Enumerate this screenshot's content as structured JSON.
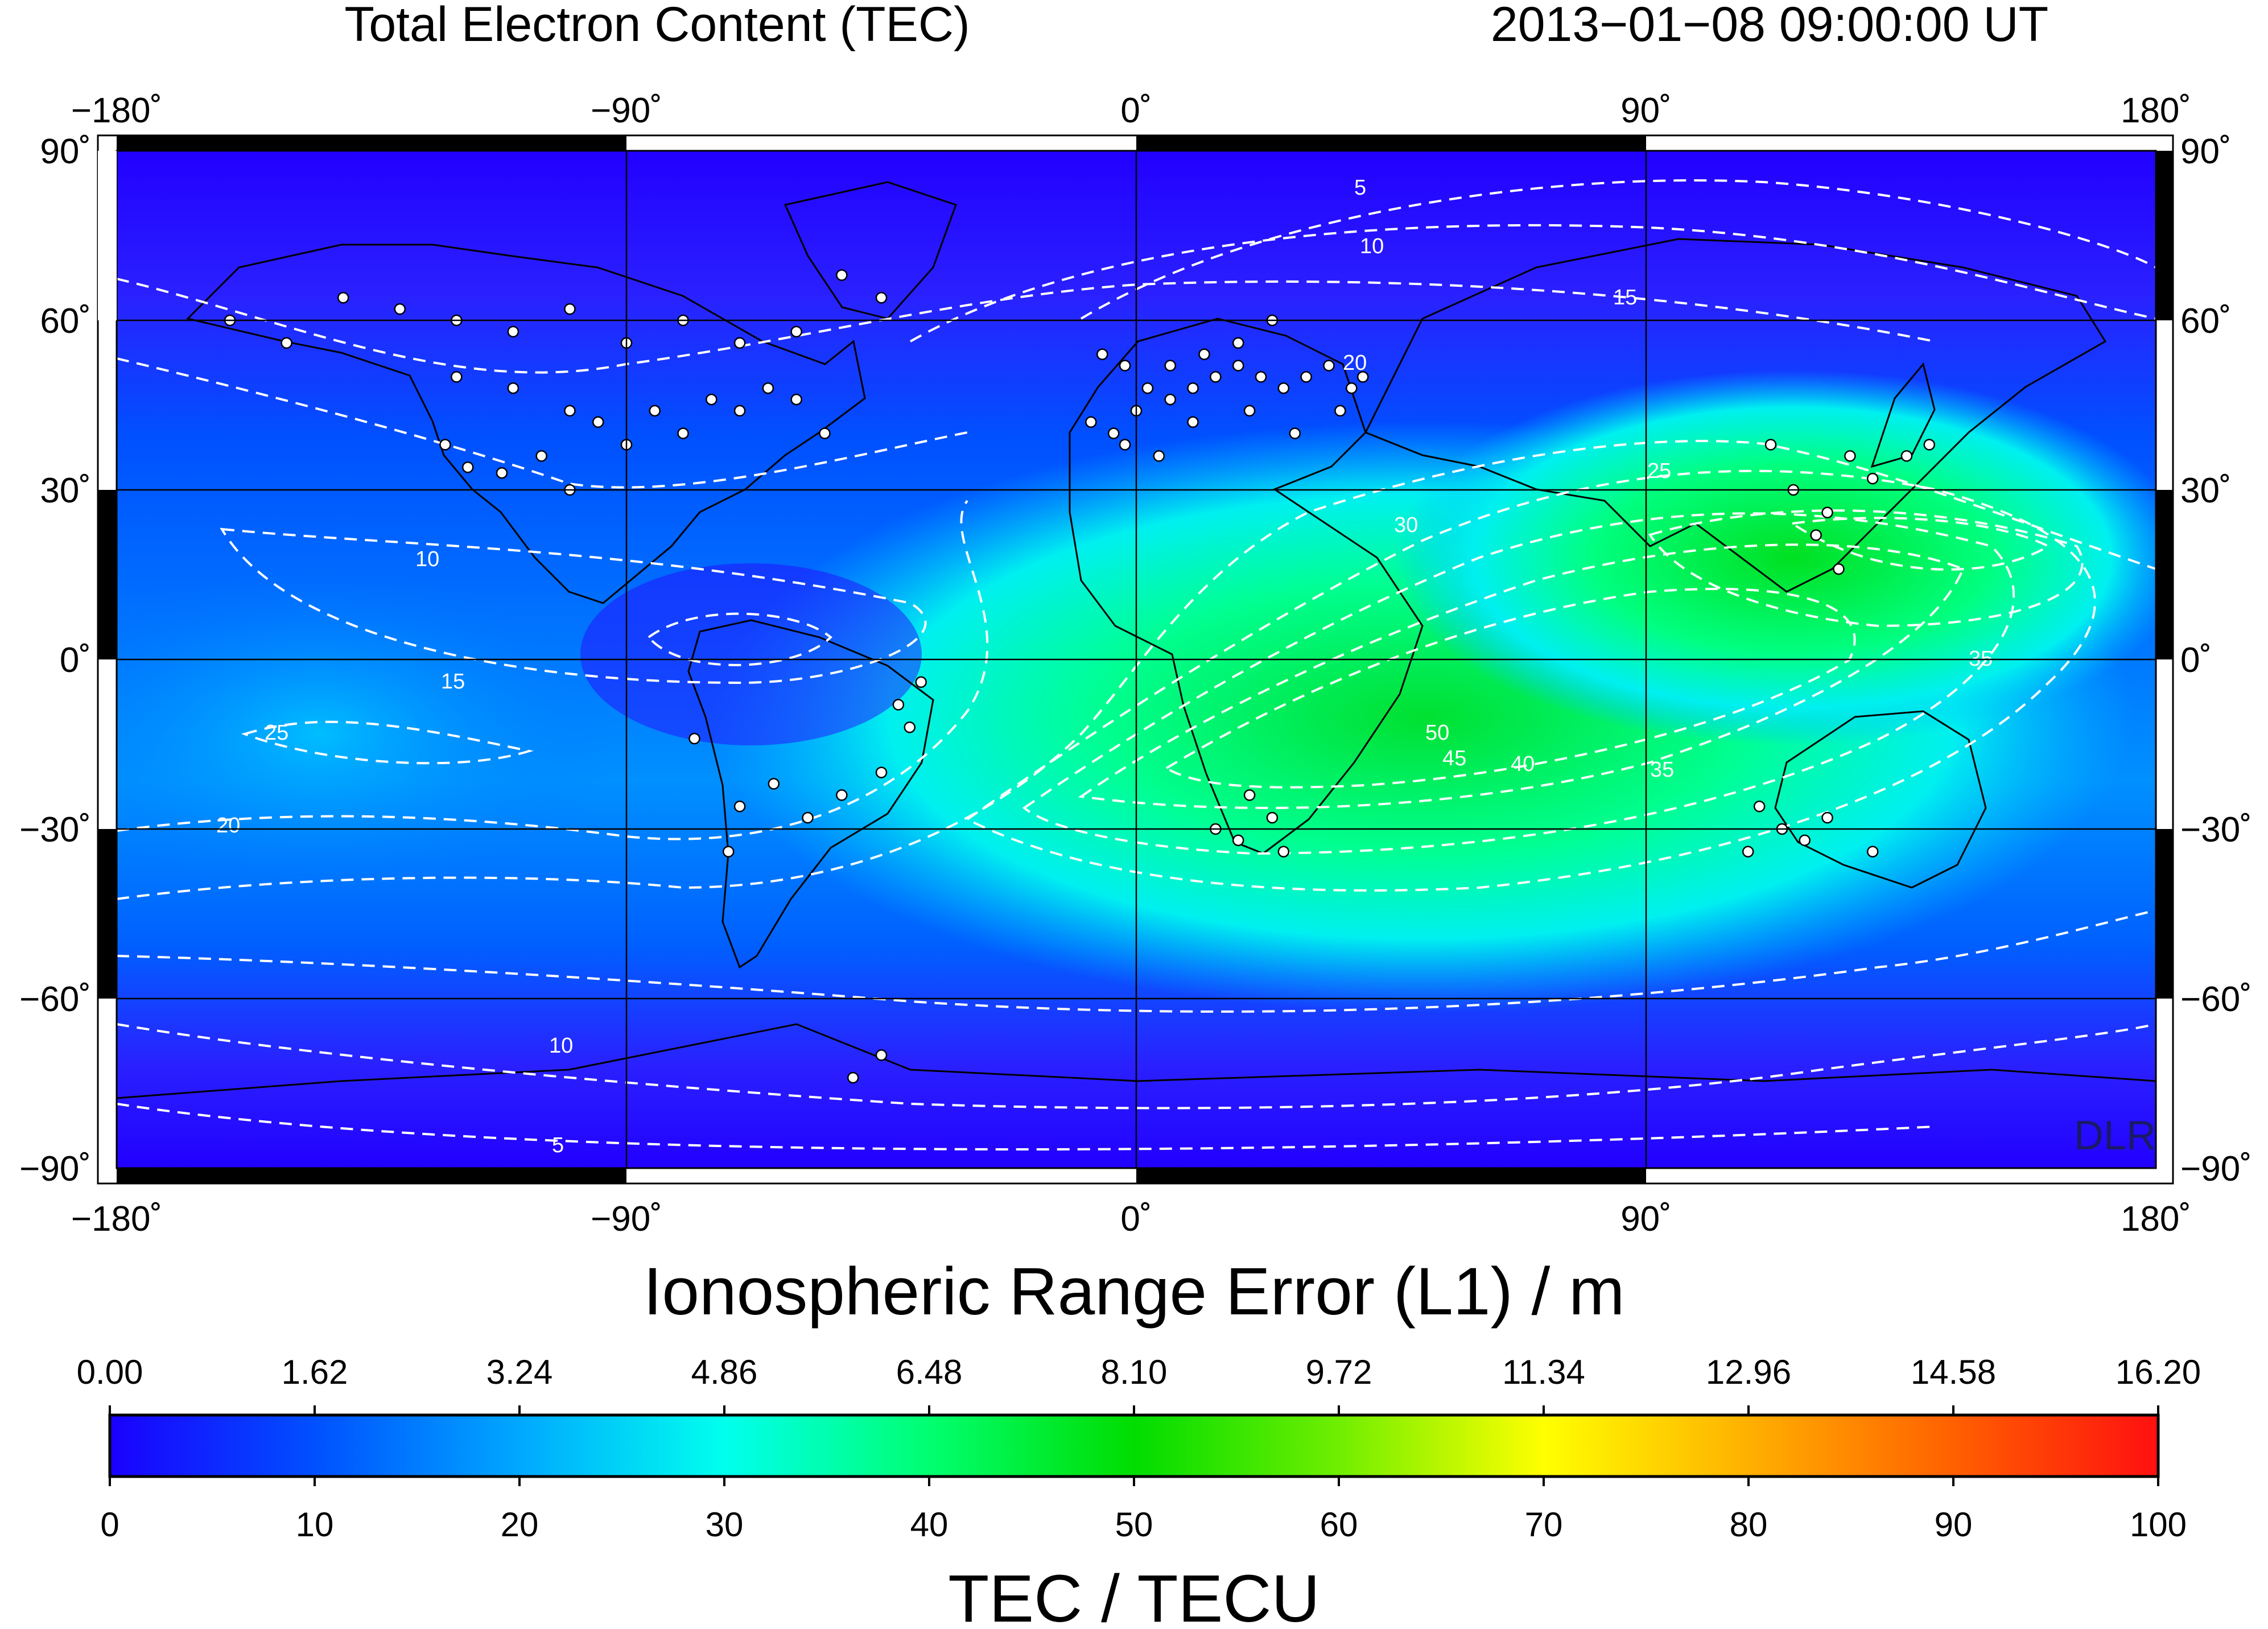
{
  "header": {
    "title": "Total Electron Content (TEC)",
    "timestamp": "2013−01−08  09:00:00 UT"
  },
  "map": {
    "lon_ticks": [
      "−180˚",
      "−90˚",
      "0˚",
      "90˚",
      "180˚"
    ],
    "lat_ticks": [
      "90˚",
      "60˚",
      "30˚",
      "0˚",
      "−30˚",
      "−60˚",
      "−90˚"
    ],
    "lon_values": [
      -180,
      -90,
      0,
      90,
      180
    ],
    "lat_values": [
      90,
      60,
      30,
      0,
      -30,
      -60,
      -90
    ],
    "credit": "DLR",
    "colors": {
      "low": "#2a00ff",
      "mid": "#00ffe0",
      "high": "#00dd00",
      "contour": "#ffffff",
      "station": "#ffffff"
    }
  },
  "colorbar": {
    "top_label": "Ionospheric Range Error (L1) / m",
    "top_ticks": [
      "0.00",
      "1.62",
      "3.24",
      "4.86",
      "6.48",
      "8.10",
      "9.72",
      "11.34",
      "12.96",
      "14.58",
      "16.20"
    ],
    "bottom_ticks": [
      "0",
      "10",
      "20",
      "30",
      "40",
      "50",
      "60",
      "70",
      "80",
      "90",
      "100"
    ],
    "bottom_label": "TEC / TECU",
    "stops": [
      "#1a00ff",
      "#0050ff",
      "#00a8ff",
      "#00ffee",
      "#00ff70",
      "#00dd00",
      "#70ee00",
      "#ffff00",
      "#ffb000",
      "#ff6000",
      "#ff1010"
    ]
  },
  "contour_labels": [
    "5",
    "10",
    "15",
    "20",
    "25",
    "30",
    "35",
    "40",
    "45",
    "50"
  ]
}
